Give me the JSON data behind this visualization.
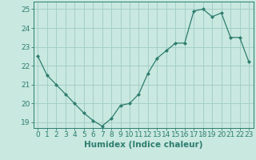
{
  "x": [
    0,
    1,
    2,
    3,
    4,
    5,
    6,
    7,
    8,
    9,
    10,
    11,
    12,
    13,
    14,
    15,
    16,
    17,
    18,
    19,
    20,
    21,
    22,
    23
  ],
  "y": [
    22.5,
    21.5,
    21.0,
    20.5,
    20.0,
    19.5,
    19.1,
    18.8,
    19.2,
    19.9,
    20.0,
    20.5,
    21.6,
    22.4,
    22.8,
    23.2,
    23.2,
    24.9,
    25.0,
    24.6,
    24.8,
    23.5,
    23.5,
    22.2
  ],
  "line_color": "#2e7d6e",
  "marker": "D",
  "marker_size": 2,
  "bg_color": "#c8e8e0",
  "grid_color": "#a0ccC4",
  "xlabel": "Humidex (Indice chaleur)",
  "ylim": [
    18.7,
    25.4
  ],
  "xlim": [
    -0.5,
    23.5
  ],
  "yticks": [
    19,
    20,
    21,
    22,
    23,
    24,
    25
  ],
  "xticks": [
    0,
    1,
    2,
    3,
    4,
    5,
    6,
    7,
    8,
    9,
    10,
    11,
    12,
    13,
    14,
    15,
    16,
    17,
    18,
    19,
    20,
    21,
    22,
    23
  ],
  "tick_color": "#2e7d6e",
  "axis_color": "#2e7d6e",
  "xlabel_fontsize": 7.5,
  "tick_fontsize": 6.5
}
